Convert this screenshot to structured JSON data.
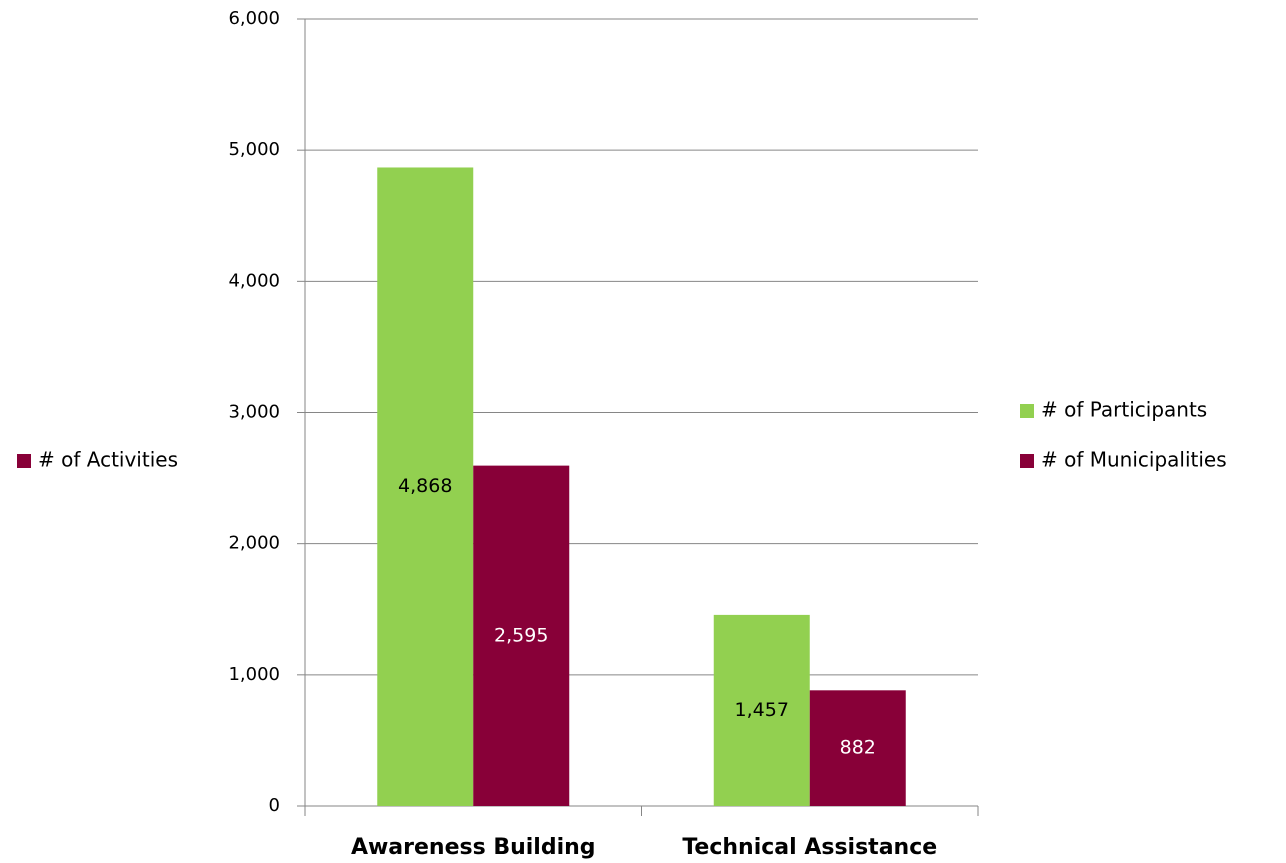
{
  "chart_data": {
    "type": "bar",
    "categories": [
      "Awareness Building",
      "Technical Assistance"
    ],
    "series": [
      {
        "name": "# of Participants",
        "color": "#92d050",
        "values": [
          4868,
          1457
        ],
        "value_labels": [
          "4,868",
          "1,457"
        ],
        "label_color": "#000000",
        "legend_position": "right"
      },
      {
        "name": "# of Municipalities",
        "color": "#880038",
        "values": [
          2595,
          882
        ],
        "value_labels": [
          "2,595",
          "882"
        ],
        "label_color": "#ffffff",
        "legend_position": "right"
      },
      {
        "name": "# of Activities",
        "color": "#880038",
        "values": [
          null,
          null
        ],
        "legend_position": "left"
      }
    ],
    "ylim": [
      0,
      6000
    ],
    "yticks": [
      0,
      {
        "value": 1000,
        "label": "1,000"
      },
      {
        "value": 2000,
        "label": "2,000"
      },
      {
        "value": 3000,
        "label": "3,000"
      },
      {
        "value": 4000,
        "label": "4,000"
      },
      {
        "value": 5000,
        "label": "5,000"
      },
      {
        "value": 6000,
        "label": "6,000"
      }
    ],
    "grid": true
  }
}
